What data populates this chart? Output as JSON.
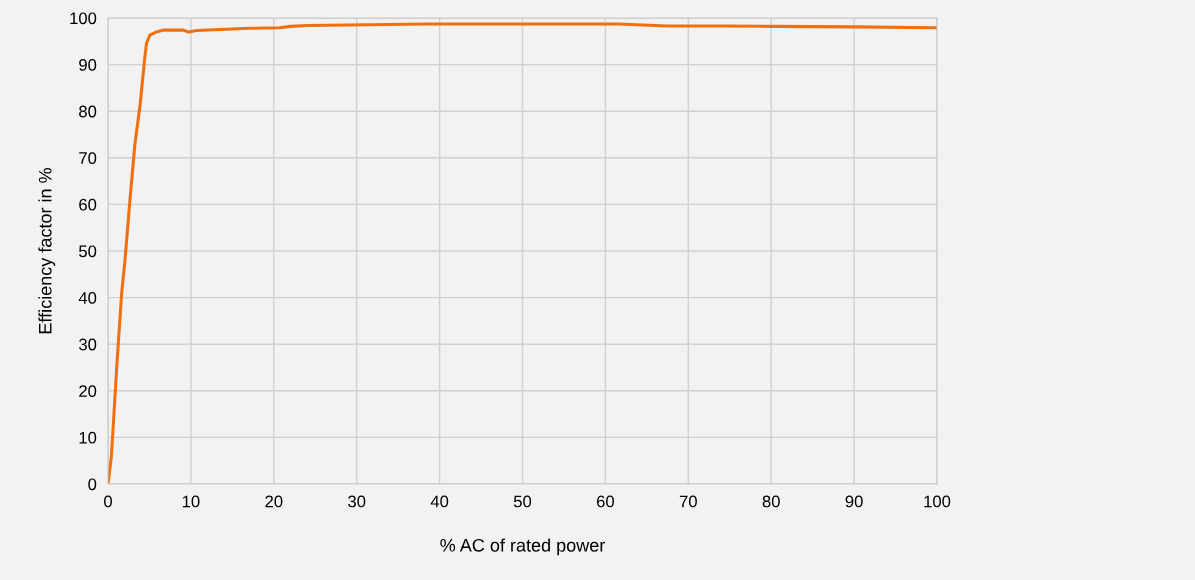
{
  "chart_data": {
    "type": "line",
    "xlabel": "% AC of rated power",
    "ylabel": "Efficiency factor in %",
    "xlim": [
      0,
      100
    ],
    "ylim": [
      0,
      100
    ],
    "xticks": [
      0,
      10,
      20,
      30,
      40,
      50,
      60,
      70,
      80,
      90,
      100
    ],
    "yticks": [
      0,
      10,
      20,
      30,
      40,
      50,
      60,
      70,
      80,
      90,
      100
    ],
    "grid": true,
    "series": [
      {
        "color": "#f07010",
        "x": [
          0,
          0.4,
          0.65,
          1.05,
          1.65,
          2.05,
          2.65,
          3.25,
          3.85,
          4.45,
          4.65,
          5.05,
          5.85,
          6.65,
          9.1,
          9.7,
          10.7,
          17.1,
          20.7,
          22,
          24,
          38.5,
          50,
          61.6,
          67.5,
          74.5,
          80,
          90,
          100
        ],
        "values": [
          0,
          5.8,
          13,
          25,
          41,
          48,
          61,
          73,
          81,
          91.7,
          94.6,
          96.3,
          97,
          97.4,
          97.4,
          97,
          97.3,
          97.8,
          97.9,
          98.2,
          98.4,
          98.7,
          98.7,
          98.7,
          98.3,
          98.3,
          98.2,
          98.1,
          97.9
        ]
      }
    ]
  }
}
